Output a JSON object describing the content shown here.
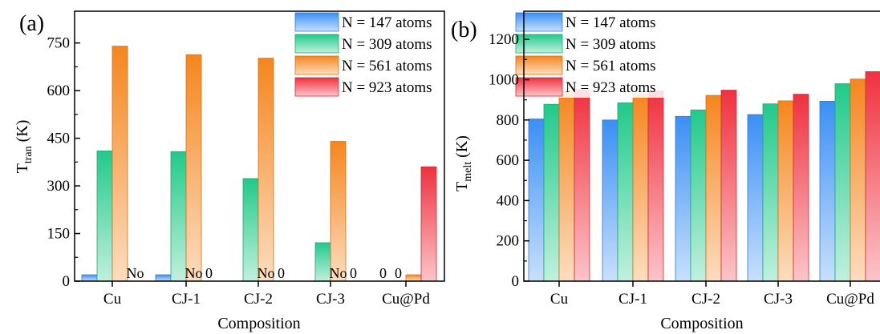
{
  "chart_data": [
    {
      "panel": "(a)",
      "type": "bar",
      "categories": [
        "Cu",
        "CJ-1",
        "CJ-2",
        "CJ-3",
        "Cu@Pd"
      ],
      "series": [
        {
          "name": "N = 147 atoms",
          "values": [
            20,
            20,
            0,
            0,
            0
          ],
          "color": "#3b8ff5"
        },
        {
          "name": "N = 309 atoms",
          "values": [
            410,
            408,
            323,
            121,
            0
          ],
          "color": "#22c98a"
        },
        {
          "name": "N = 561 atoms",
          "values": [
            740,
            713,
            702,
            440,
            20
          ],
          "color": "#f5861e"
        },
        {
          "name": "N = 923 atoms",
          "values": [
            0,
            0,
            0,
            0,
            360
          ],
          "color": "#f0313f"
        }
      ],
      "annotations": [
        {
          "category_index": 0,
          "series_index": 3,
          "text": "No"
        },
        {
          "category_index": 1,
          "series_index": 2,
          "text": "No"
        },
        {
          "category_index": 1,
          "series_index": 3,
          "text": "0"
        },
        {
          "category_index": 2,
          "series_index": 2,
          "text": "No"
        },
        {
          "category_index": 2,
          "series_index": 3,
          "text": "0"
        },
        {
          "category_index": 3,
          "series_index": 2,
          "text": "No"
        },
        {
          "category_index": 3,
          "series_index": 3,
          "text": "0"
        },
        {
          "category_index": 4,
          "series_index": 0,
          "text": "0"
        },
        {
          "category_index": 4,
          "series_index": 1,
          "text": "0"
        }
      ],
      "xlabel": "Composition",
      "ylabel_main": "T",
      "ylabel_sub": "tran",
      "ylabel_unit": " (K)",
      "ylim": [
        0,
        850
      ],
      "yticks": [
        0,
        150,
        300,
        450,
        600,
        750
      ],
      "legend_position": "top-right",
      "grid": false
    },
    {
      "panel": "(b)",
      "type": "bar",
      "categories": [
        "Cu",
        "CJ-1",
        "CJ-2",
        "CJ-3",
        "Cu@Pd"
      ],
      "series": [
        {
          "name": "N = 147 atoms",
          "values": [
            805,
            800,
            818,
            827,
            893
          ],
          "color": "#3b8ff5"
        },
        {
          "name": "N = 309 atoms",
          "values": [
            878,
            885,
            850,
            880,
            980
          ],
          "color": "#22c98a"
        },
        {
          "name": "N = 561 atoms",
          "values": [
            940,
            930,
            922,
            895,
            1003
          ],
          "color": "#f5861e"
        },
        {
          "name": "N = 923 atoms",
          "values": [
            950,
            945,
            948,
            928,
            1040
          ],
          "color": "#f0313f"
        }
      ],
      "annotations": [],
      "xlabel": "Composition",
      "ylabel_main": "T",
      "ylabel_sub": "melt",
      "ylabel_unit": " (K)",
      "ylim": [
        0,
        1340
      ],
      "yticks": [
        0,
        200,
        400,
        600,
        800,
        1000,
        1200
      ],
      "legend_position": "top-left",
      "grid": false
    }
  ]
}
